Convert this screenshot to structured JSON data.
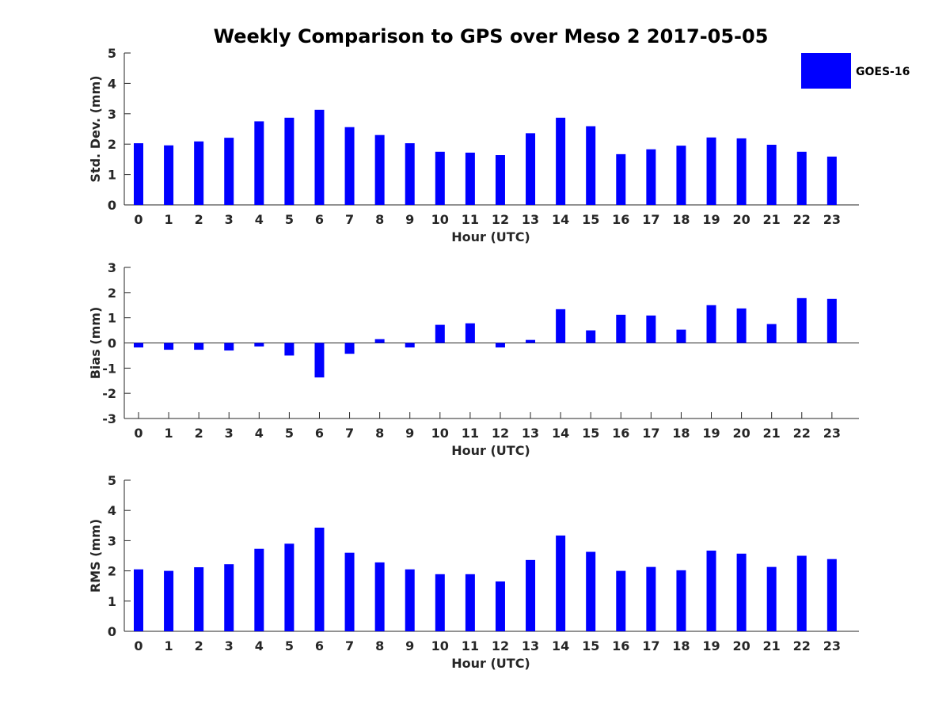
{
  "chart_data": {
    "type": "bar",
    "title": "Weekly Comparison to GPS over Meso 2 2017-05-05",
    "legend": {
      "label": "GOES-16",
      "color": "#0000ff",
      "placement": "top-right"
    },
    "categories": [
      "0",
      "1",
      "2",
      "3",
      "4",
      "5",
      "6",
      "7",
      "8",
      "9",
      "10",
      "11",
      "12",
      "13",
      "14",
      "15",
      "16",
      "17",
      "18",
      "19",
      "20",
      "21",
      "22",
      "23"
    ],
    "panels": [
      {
        "id": "std",
        "ylabel": "Std. Dev. (mm)",
        "xlabel": "Hour (UTC)",
        "ylim": [
          0,
          5
        ],
        "yticks": [
          "0",
          "1",
          "2",
          "3",
          "4",
          "5"
        ],
        "series": [
          {
            "name": "GOES-16",
            "color": "#0000ff",
            "values": [
              2.03,
              1.96,
              2.09,
              2.21,
              2.75,
              2.87,
              3.13,
              2.56,
              2.3,
              2.03,
              1.75,
              1.72,
              1.64,
              2.36,
              2.87,
              2.59,
              1.67,
              1.83,
              1.95,
              2.22,
              2.19,
              1.98,
              1.75,
              1.59
            ]
          }
        ]
      },
      {
        "id": "bias",
        "ylabel": "Bias (mm)",
        "xlabel": "Hour (UTC)",
        "ylim": [
          -3,
          3
        ],
        "yticks": [
          "-3",
          "-2",
          "-1",
          "0",
          "1",
          "2",
          "3"
        ],
        "series": [
          {
            "name": "GOES-16",
            "color": "#0000ff",
            "values": [
              -0.18,
              -0.27,
              -0.27,
              -0.3,
              -0.14,
              -0.5,
              -1.37,
              -0.43,
              0.15,
              -0.18,
              0.72,
              0.78,
              -0.18,
              0.12,
              1.34,
              0.5,
              1.12,
              1.09,
              0.53,
              1.5,
              1.37,
              0.75,
              1.78,
              1.75
            ]
          }
        ]
      },
      {
        "id": "rms",
        "ylabel": "RMS (mm)",
        "xlabel": "Hour (UTC)",
        "ylim": [
          0,
          5
        ],
        "yticks": [
          "0",
          "1",
          "2",
          "3",
          "4",
          "5"
        ],
        "series": [
          {
            "name": "GOES-16",
            "color": "#0000ff",
            "values": [
              2.05,
              2.0,
              2.12,
              2.22,
              2.73,
              2.9,
              3.43,
              2.6,
              2.28,
              2.05,
              1.89,
              1.89,
              1.65,
              2.36,
              3.17,
              2.63,
              2.0,
              2.13,
              2.02,
              2.67,
              2.57,
              2.13,
              2.5,
              2.39
            ]
          }
        ]
      }
    ]
  }
}
